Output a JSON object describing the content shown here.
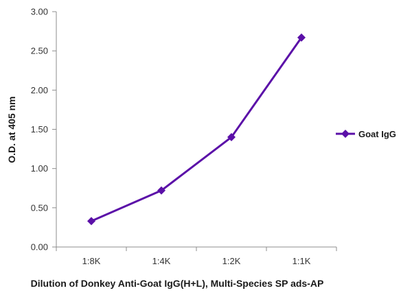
{
  "chart_data": {
    "type": "line",
    "title": "",
    "xlabel": "Dilution of Donkey Anti-Goat IgG(H+L), Multi-Species SP ads-AP",
    "ylabel": "O.D. at 405 nm",
    "categories": [
      "1:8K",
      "1:4K",
      "1:2K",
      "1:1K"
    ],
    "ylim": [
      0,
      3.0
    ],
    "yticks": [
      "0.00",
      "0.50",
      "1.00",
      "1.50",
      "2.00",
      "2.50",
      "3.00"
    ],
    "series": [
      {
        "name": "Goat IgG",
        "values": [
          0.33,
          0.72,
          1.4,
          2.67
        ],
        "color": "#5b10a8",
        "marker": "diamond"
      }
    ],
    "legend_position": "right",
    "grid": false
  }
}
